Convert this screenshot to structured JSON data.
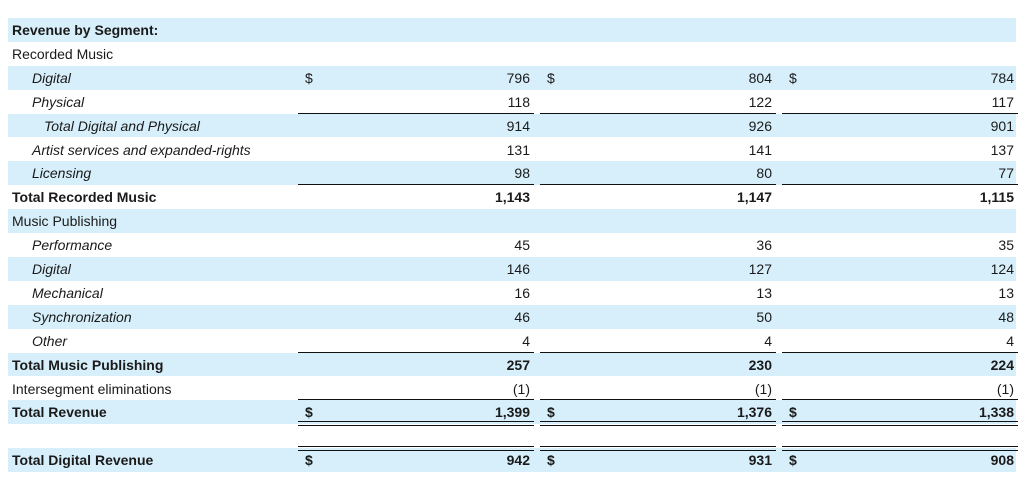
{
  "table": {
    "rows": [
      {
        "label": "Revenue by Segment:"
      },
      {
        "label": "Recorded Music"
      },
      {
        "label": "Digital",
        "cells": [
          {
            "currency": "$",
            "value": "796"
          },
          {
            "currency": "$",
            "value": "804"
          },
          {
            "currency": "$",
            "value": "784"
          }
        ]
      },
      {
        "label": "Physical",
        "cells": [
          {
            "value": "118"
          },
          {
            "value": "122"
          },
          {
            "value": "117"
          }
        ]
      },
      {
        "label": "Total Digital and Physical",
        "cells": [
          {
            "value": "914"
          },
          {
            "value": "926"
          },
          {
            "value": "901"
          }
        ]
      },
      {
        "label": "Artist services and expanded-rights",
        "cells": [
          {
            "value": "131"
          },
          {
            "value": "141"
          },
          {
            "value": "137"
          }
        ]
      },
      {
        "label": "Licensing",
        "cells": [
          {
            "value": "98"
          },
          {
            "value": "80"
          },
          {
            "value": "77"
          }
        ]
      },
      {
        "label": "Total Recorded Music",
        "cells": [
          {
            "value": "1,143"
          },
          {
            "value": "1,147"
          },
          {
            "value": "1,115"
          }
        ]
      },
      {
        "label": "Music Publishing"
      },
      {
        "label": "Performance",
        "cells": [
          {
            "value": "45"
          },
          {
            "value": "36"
          },
          {
            "value": "35"
          }
        ]
      },
      {
        "label": "Digital",
        "cells": [
          {
            "value": "146"
          },
          {
            "value": "127"
          },
          {
            "value": "124"
          }
        ]
      },
      {
        "label": "Mechanical",
        "cells": [
          {
            "value": "16"
          },
          {
            "value": "13"
          },
          {
            "value": "13"
          }
        ]
      },
      {
        "label": "Synchronization",
        "cells": [
          {
            "value": "46"
          },
          {
            "value": "50"
          },
          {
            "value": "48"
          }
        ]
      },
      {
        "label": "Other",
        "cells": [
          {
            "value": "4"
          },
          {
            "value": "4"
          },
          {
            "value": "4"
          }
        ]
      },
      {
        "label": "Total Music Publishing",
        "cells": [
          {
            "value": "257"
          },
          {
            "value": "230"
          },
          {
            "value": "224"
          }
        ]
      },
      {
        "label": "Intersegment eliminations",
        "cells": [
          {
            "value": "(1)"
          },
          {
            "value": "(1)"
          },
          {
            "value": "(1)"
          }
        ]
      },
      {
        "label": "Total Revenue",
        "cells": [
          {
            "currency": "$",
            "value": "1,399"
          },
          {
            "currency": "$",
            "value": "1,376"
          },
          {
            "currency": "$",
            "value": "1,338"
          }
        ]
      },
      {
        "label": "Total Digital Revenue",
        "cells": [
          {
            "currency": "$",
            "value": "942"
          },
          {
            "currency": "$",
            "value": "931"
          },
          {
            "currency": "$",
            "value": "908"
          }
        ]
      }
    ]
  }
}
